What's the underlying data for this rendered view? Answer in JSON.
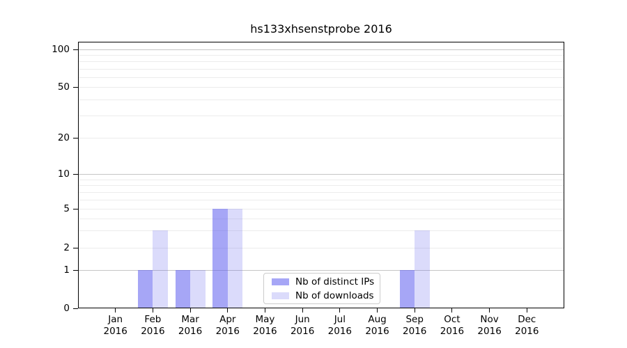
{
  "chart_data": {
    "type": "bar",
    "title": "hs133xhsenstprobe 2016",
    "categories": [
      "Jan 2016",
      "Feb 2016",
      "Mar 2016",
      "Apr 2016",
      "May 2016",
      "Jun 2016",
      "Jul 2016",
      "Aug 2016",
      "Sep 2016",
      "Oct 2016",
      "Nov 2016",
      "Dec 2016"
    ],
    "series": [
      {
        "name": "Nb of distinct IPs",
        "color": "rgba(93,93,238,0.55)",
        "values": [
          0,
          1,
          1,
          5,
          0,
          0,
          0,
          0,
          1,
          0,
          0,
          0
        ]
      },
      {
        "name": "Nb of downloads",
        "color": "rgba(93,93,238,0.22)",
        "values": [
          0,
          3,
          1,
          5,
          0,
          0,
          0,
          0,
          3,
          0,
          0,
          0
        ]
      }
    ],
    "xlabel": "",
    "ylabel": "",
    "y_ticks": [
      0,
      1,
      2,
      5,
      10,
      20,
      50,
      100
    ],
    "ylim": [
      0,
      115
    ],
    "yscale": "symlog (log above 1, linear 0-1)",
    "grid": true,
    "grid_major_color": "#c6c6c6",
    "grid_minor_color": "#ececec",
    "legend_position": "lower center, inside plot"
  }
}
